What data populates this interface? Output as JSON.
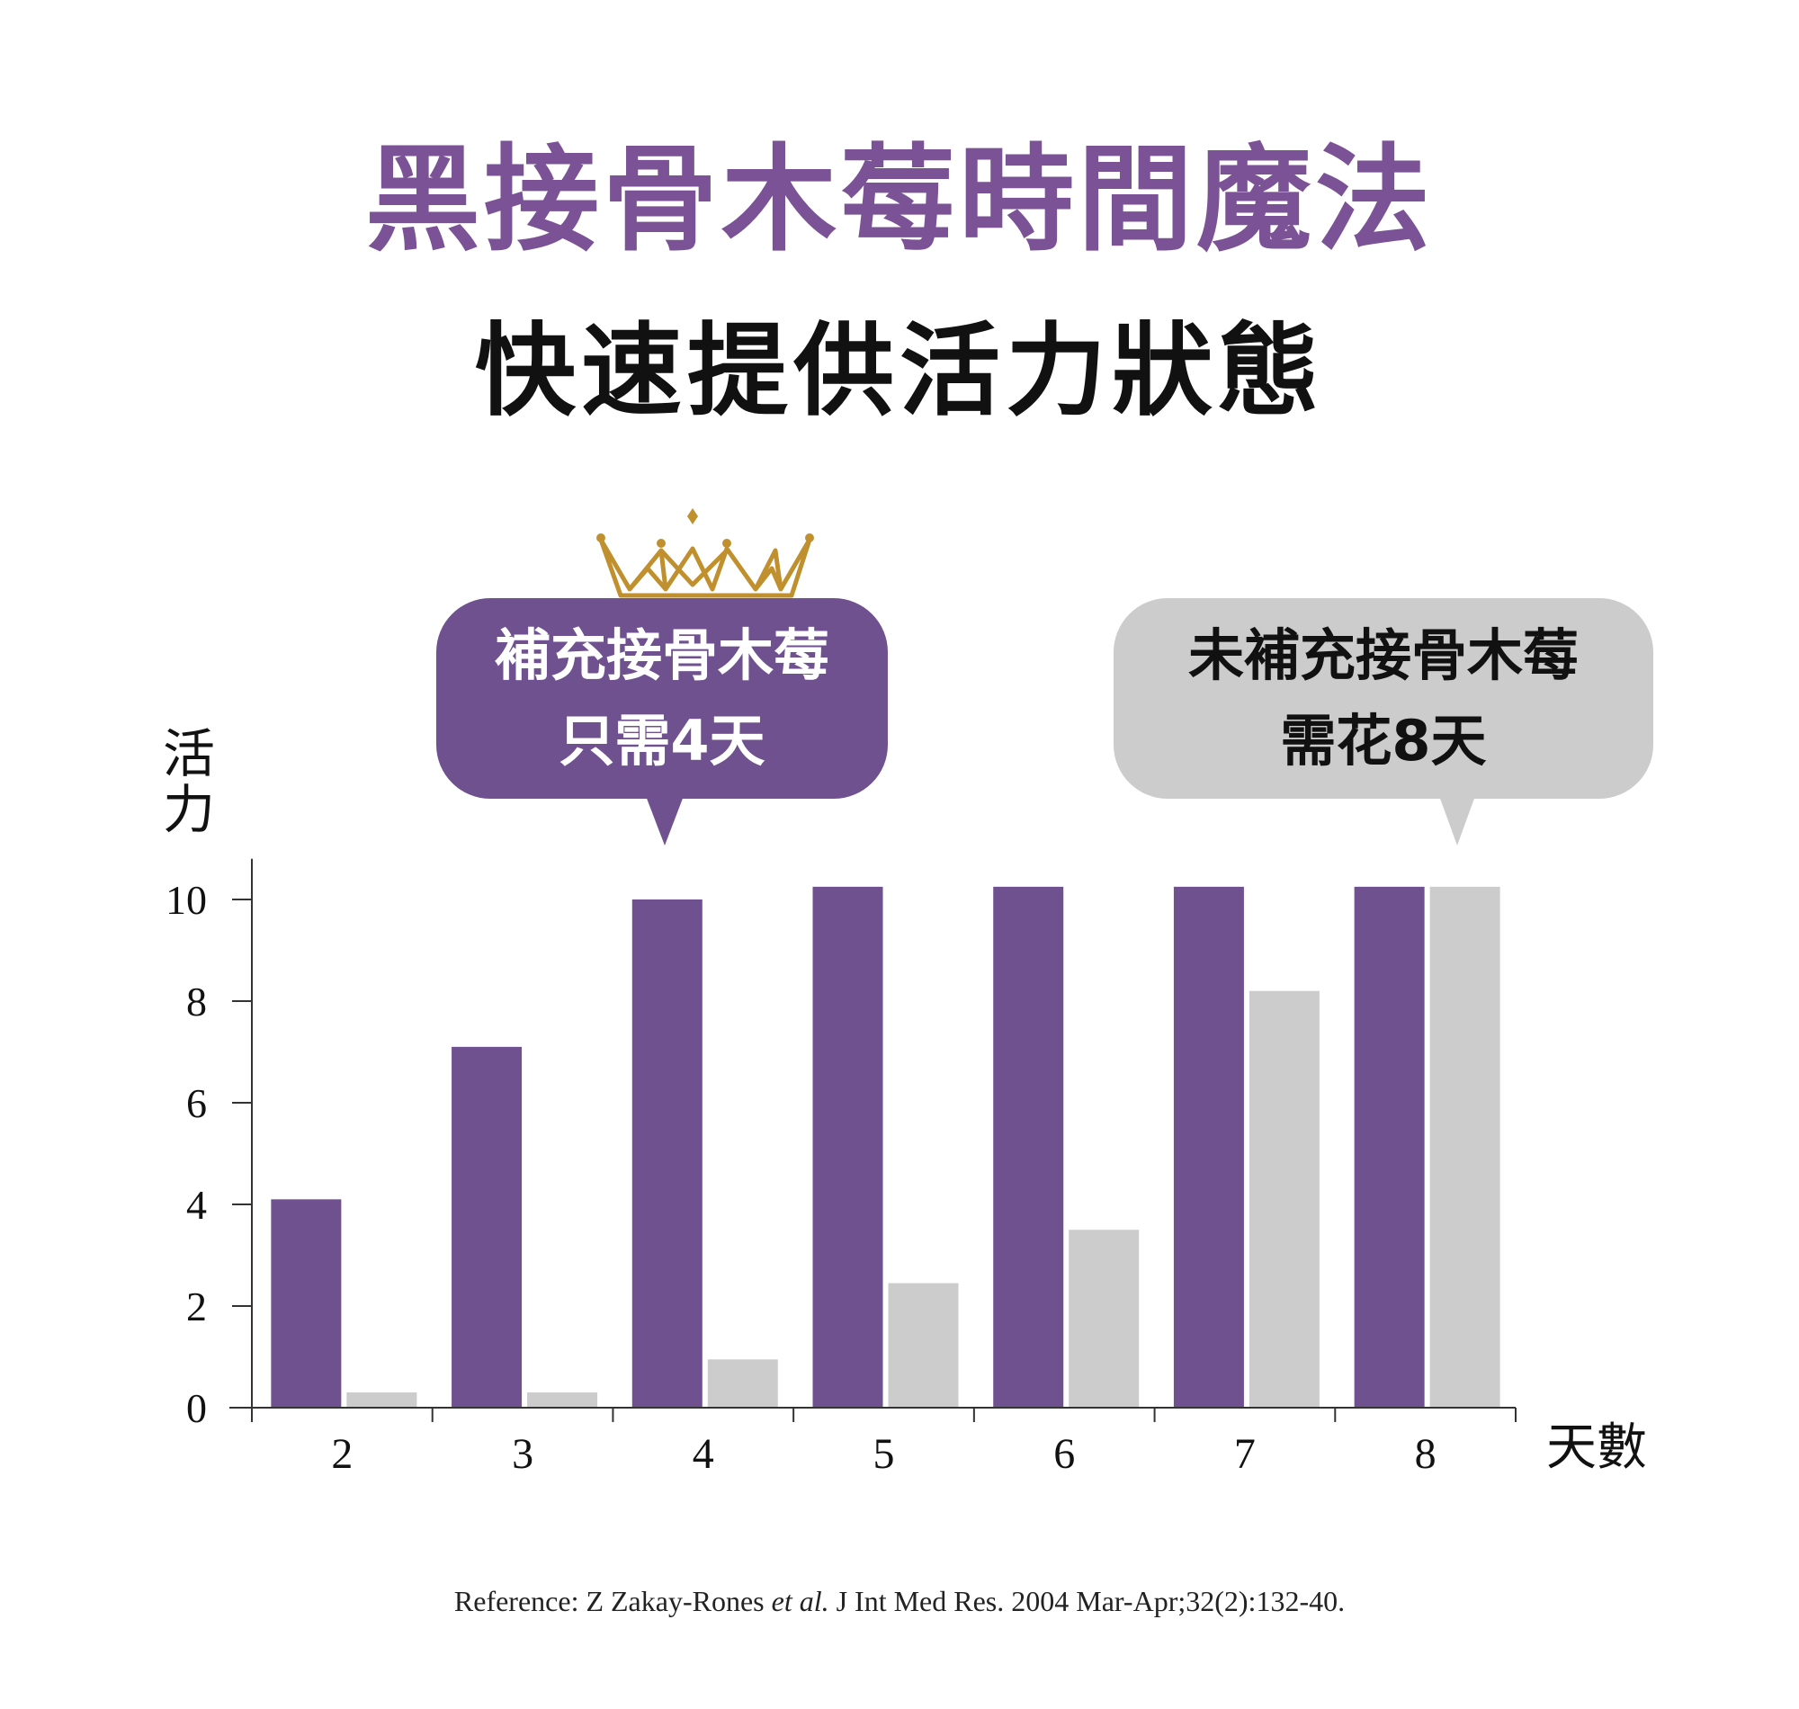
{
  "title": "黑接骨木莓時間魔法",
  "subtitle": "快速提供活力狀態",
  "colors": {
    "accent": "#70518f",
    "title_purple": "#7a5295",
    "gray": "#cccccc",
    "callout_gray": "#cccccc"
  },
  "icons": {
    "crown": "crown-icon"
  },
  "callouts": {
    "with": {
      "line1": "補充接骨木莓",
      "line2": "只需4天"
    },
    "without": {
      "line1": "未補充接骨木莓",
      "line2": "需花8天"
    }
  },
  "reference": {
    "prefix": "Reference: Z Zakay-Rones ",
    "italic": "et al.",
    "suffix": " J Int Med Res. 2004 Mar-Apr;32(2):132-40."
  },
  "chart_data": {
    "type": "bar",
    "categories": [
      "2",
      "3",
      "4",
      "5",
      "6",
      "7",
      "8"
    ],
    "series": [
      {
        "values": [
          4.1,
          7.1,
          10.0,
          10.25,
          10.25,
          10.25,
          10.25
        ],
        "color": "#70518f"
      },
      {
        "values": [
          0.3,
          0.3,
          0.95,
          2.45,
          3.5,
          8.2,
          10.25
        ],
        "color": "#cccccc"
      }
    ],
    "xlabel": "天數",
    "ylabel": "活力",
    "ylim": [
      0,
      10.8
    ],
    "yticks": [
      0,
      2,
      4,
      6,
      8,
      10
    ],
    "grid": false,
    "legend": "none"
  }
}
